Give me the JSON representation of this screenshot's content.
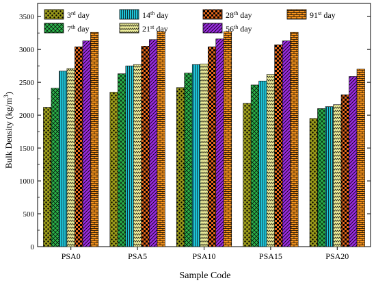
{
  "chart_data": {
    "type": "bar",
    "xlabel": "Sample Code",
    "ylabel": "Bulk Density (kg/m³)",
    "ylabel_base": "Bulk Density (kg/m",
    "ylabel_sup": "3",
    "ylabel_close": ")",
    "ylim": [
      0,
      3700
    ],
    "yticks": [
      0,
      500,
      1000,
      1500,
      2000,
      2500,
      3000,
      3500
    ],
    "categories": [
      "PSA0",
      "PSA5",
      "PSA10",
      "PSA15",
      "PSA20"
    ],
    "legend_position": "top",
    "series": [
      {
        "name": "3rd day",
        "num": "3",
        "sup": "rd",
        "suffix": " day",
        "color": "#9a9a1a",
        "pattern": "dots",
        "values": [
          2120,
          2350,
          2420,
          2180,
          1950
        ]
      },
      {
        "name": "7th day",
        "num": "7",
        "sup": "th",
        "suffix": " day",
        "color": "#2bb04a",
        "pattern": "crosshatch",
        "values": [
          2410,
          2630,
          2640,
          2460,
          2100
        ]
      },
      {
        "name": "14th day",
        "num": "14",
        "sup": "th",
        "suffix": " day",
        "color": "#1fc4d8",
        "pattern": "vlines",
        "values": [
          2670,
          2750,
          2770,
          2520,
          2130
        ]
      },
      {
        "name": "21st day",
        "num": "21",
        "sup": "st",
        "suffix": " day",
        "color": "#ecec9a",
        "pattern": "zigzag",
        "values": [
          2710,
          2770,
          2780,
          2620,
          2160
        ]
      },
      {
        "name": "28th day",
        "num": "28",
        "sup": "th",
        "suffix": " day",
        "color": "#e8691c",
        "pattern": "checker",
        "values": [
          3040,
          3050,
          3040,
          3070,
          2310
        ]
      },
      {
        "name": "56th day",
        "num": "56",
        "sup": "th",
        "suffix": " day",
        "color": "#9a2be0",
        "pattern": "diagonal",
        "values": [
          3130,
          3150,
          3160,
          3130,
          2590
        ]
      },
      {
        "name": "91st day",
        "num": "91",
        "sup": "st",
        "suffix": " day",
        "color": "#f7941d",
        "pattern": "brick",
        "values": [
          3260,
          3270,
          3270,
          3260,
          2700
        ]
      }
    ]
  }
}
